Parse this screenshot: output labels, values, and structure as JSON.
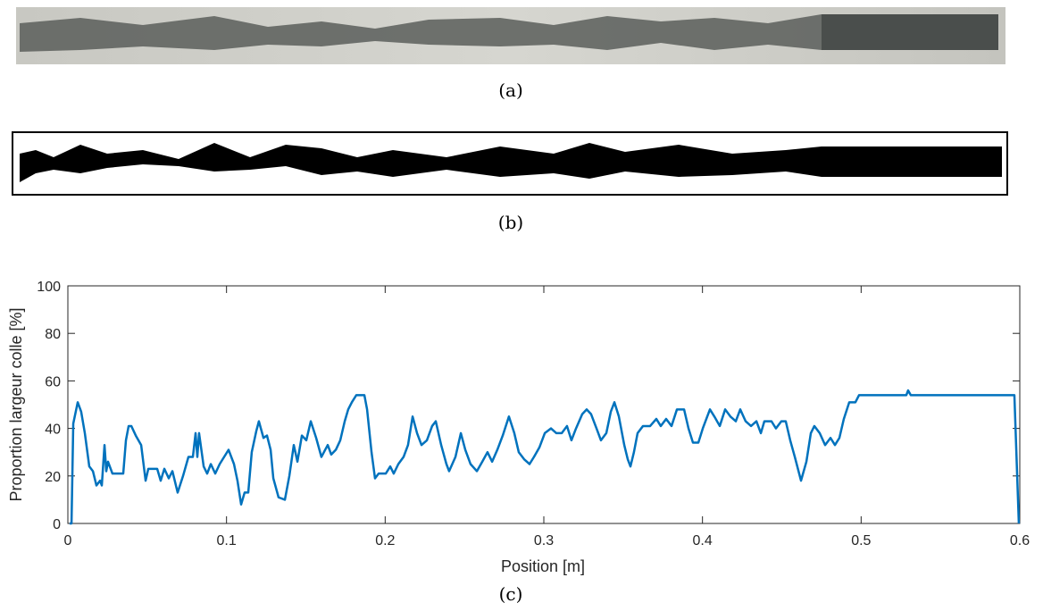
{
  "captions": [
    "(a)",
    "(b)",
    "(c)"
  ],
  "chart_data": {
    "type": "line",
    "xlabel": "Position [m]",
    "ylabel": "Proportion largeur colle [%]",
    "xlim": [
      0,
      0.6
    ],
    "ylim": [
      0,
      100
    ],
    "xticks": [
      0,
      0.1,
      0.2,
      0.3,
      0.4,
      0.5,
      0.6
    ],
    "yticks": [
      0,
      20,
      40,
      60,
      80,
      100
    ],
    "x": [
      0.0011,
      0.0023,
      0.0034,
      0.0062,
      0.0084,
      0.0107,
      0.0135,
      0.0158,
      0.018,
      0.0203,
      0.0214,
      0.0231,
      0.0242,
      0.0253,
      0.0281,
      0.0349,
      0.0366,
      0.0383,
      0.04,
      0.0428,
      0.0462,
      0.049,
      0.0507,
      0.0563,
      0.0585,
      0.0608,
      0.0636,
      0.0659,
      0.0692,
      0.0726,
      0.076,
      0.0788,
      0.0805,
      0.0816,
      0.0827,
      0.0856,
      0.0878,
      0.0901,
      0.0929,
      0.0957,
      0.0985,
      0.1013,
      0.1047,
      0.1069,
      0.1092,
      0.1114,
      0.1137,
      0.1159,
      0.1188,
      0.1204,
      0.1233,
      0.1255,
      0.1278,
      0.1295,
      0.1328,
      0.1368,
      0.1396,
      0.1424,
      0.1447,
      0.1475,
      0.1503,
      0.1531,
      0.1565,
      0.1598,
      0.1638,
      0.166,
      0.1689,
      0.1717,
      0.1745,
      0.1767,
      0.179,
      0.1818,
      0.1869,
      0.1886,
      0.1914,
      0.1936,
      0.1959,
      0.2004,
      0.2032,
      0.2054,
      0.2083,
      0.2116,
      0.2144,
      0.2173,
      0.2201,
      0.2229,
      0.2263,
      0.2296,
      0.2319,
      0.2353,
      0.2386,
      0.2403,
      0.2443,
      0.2477,
      0.2505,
      0.2538,
      0.2578,
      0.2612,
      0.2645,
      0.2674,
      0.2707,
      0.2741,
      0.278,
      0.2814,
      0.2842,
      0.2876,
      0.291,
      0.2938,
      0.2972,
      0.3006,
      0.3045,
      0.3079,
      0.3113,
      0.3146,
      0.3174,
      0.3203,
      0.3242,
      0.327,
      0.3298,
      0.3332,
      0.336,
      0.3394,
      0.3422,
      0.3445,
      0.3473,
      0.3507,
      0.3529,
      0.3546,
      0.3568,
      0.3591,
      0.3625,
      0.367,
      0.3709,
      0.3737,
      0.3771,
      0.3805,
      0.3839,
      0.3884,
      0.3912,
      0.394,
      0.3974,
      0.4002,
      0.403,
      0.4047,
      0.4075,
      0.4109,
      0.4143,
      0.4176,
      0.421,
      0.4238,
      0.4272,
      0.4306,
      0.434,
      0.4368,
      0.439,
      0.4435,
      0.4463,
      0.4497,
      0.4525,
      0.4553,
      0.4582,
      0.4621,
      0.4655,
      0.4683,
      0.4705,
      0.4739,
      0.4773,
      0.4807,
      0.4835,
      0.4863,
      0.4891,
      0.4925,
      0.4964,
      0.4987,
      0.5285,
      0.5296,
      0.5313,
      0.5966,
      0.5994
    ],
    "series": [
      {
        "color": "#0072bd",
        "values": [
          0,
          0,
          42,
          51,
          47,
          38,
          24,
          22,
          16,
          18,
          16,
          33,
          22,
          26,
          21,
          21,
          35,
          41,
          41,
          37,
          33,
          18,
          23,
          23,
          18,
          23,
          19,
          22,
          13,
          20,
          28,
          28,
          38,
          28,
          38,
          24,
          21,
          25,
          21,
          25,
          28,
          31,
          25,
          18,
          8,
          13,
          13,
          30,
          39,
          43,
          36,
          37,
          31,
          19,
          11,
          10,
          20,
          33,
          26,
          37,
          35,
          43,
          36,
          28,
          33,
          29,
          31,
          35,
          43,
          48,
          51,
          54,
          54,
          48,
          30,
          19,
          21,
          21,
          24,
          21,
          25,
          28,
          33,
          45,
          38,
          33,
          35,
          41,
          43,
          33,
          25,
          22,
          28,
          38,
          31,
          25,
          22,
          26,
          30,
          26,
          31,
          37,
          45,
          38,
          30,
          27,
          25,
          28,
          32,
          38,
          40,
          38,
          38,
          41,
          35,
          40,
          46,
          48,
          46,
          40,
          35,
          38,
          47,
          51,
          45,
          33,
          27,
          24,
          30,
          38,
          41,
          41,
          44,
          41,
          44,
          41,
          48,
          48,
          40,
          34,
          34,
          40,
          45,
          48,
          45,
          41,
          48,
          45,
          43,
          48,
          43,
          41,
          43,
          38,
          43,
          43,
          40,
          43,
          43,
          35,
          28,
          18,
          26,
          38,
          41,
          38,
          33,
          36,
          33,
          36,
          44,
          51,
          51,
          54,
          54,
          56,
          54,
          54,
          0
        ]
      }
    ]
  }
}
